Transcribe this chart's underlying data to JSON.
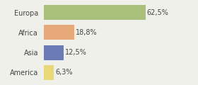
{
  "categories": [
    "Europa",
    "Africa",
    "Asia",
    "America"
  ],
  "values": [
    62.5,
    18.8,
    12.5,
    6.3
  ],
  "labels": [
    "62,5%",
    "18,8%",
    "12,5%",
    "6,3%"
  ],
  "bar_colors": [
    "#a8c07a",
    "#e8a97a",
    "#6b7bb5",
    "#e8d87a"
  ],
  "background_color": "#f0f0eb",
  "xlim": [
    0,
    80
  ],
  "label_fontsize": 7,
  "cat_fontsize": 7
}
